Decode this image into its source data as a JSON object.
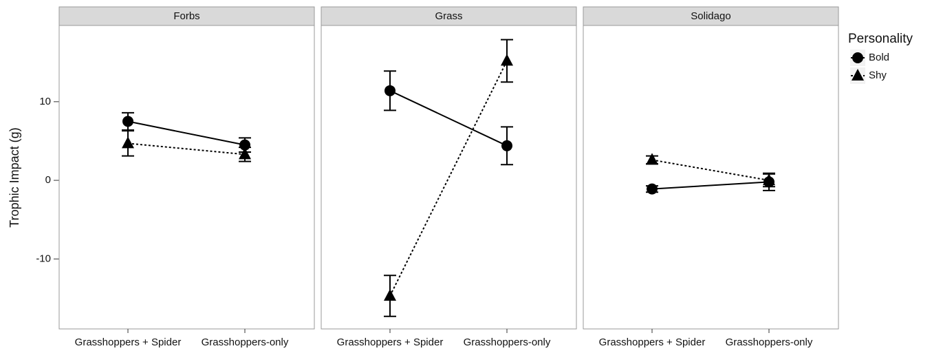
{
  "chart_data": {
    "type": "line",
    "ylabel": "Trophic Impact (g)",
    "legend_title": "Personality",
    "categories": [
      "Grasshoppers + Spider",
      "Grasshoppers-only"
    ],
    "ylim": [
      -18.9,
      19.7
    ],
    "yticks": [
      -10,
      0,
      10
    ],
    "legend": [
      {
        "name": "Bold",
        "marker": "circle",
        "dash": "solid"
      },
      {
        "name": "Shy",
        "marker": "triangle",
        "dash": "dotted"
      }
    ],
    "panels": [
      {
        "title": "Forbs",
        "series": [
          {
            "values": [
              7.5,
              4.5
            ],
            "errors": [
              1.1,
              0.9
            ]
          },
          {
            "values": [
              4.7,
              3.3
            ],
            "errors": [
              1.6,
              0.9
            ]
          }
        ]
      },
      {
        "title": "Grass",
        "series": [
          {
            "values": [
              11.4,
              4.4
            ],
            "errors": [
              2.5,
              2.4
            ]
          },
          {
            "values": [
              -14.7,
              15.2
            ],
            "errors": [
              2.6,
              2.7
            ]
          }
        ]
      },
      {
        "title": "Solidago",
        "series": [
          {
            "values": [
              -1.1,
              -0.2
            ],
            "errors": [
              0.4,
              1.1
            ]
          },
          {
            "values": [
              2.6,
              0.0
            ],
            "errors": [
              0.5,
              0.8
            ]
          }
        ]
      }
    ]
  }
}
